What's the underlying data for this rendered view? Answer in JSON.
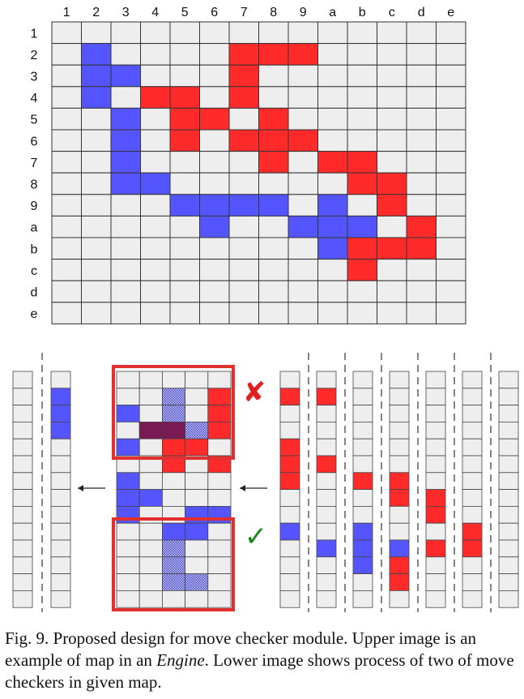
{
  "grid": {
    "col_labels": [
      "1",
      "2",
      "3",
      "4",
      "5",
      "6",
      "7",
      "8",
      "9",
      "a",
      "b",
      "c",
      "d",
      "e"
    ],
    "row_labels": [
      "1",
      "2",
      "3",
      "4",
      "5",
      "6",
      "7",
      "8",
      "9",
      "a",
      "b",
      "c",
      "d",
      "e"
    ],
    "blue_cells": [
      [
        2,
        2
      ],
      [
        2,
        3
      ],
      [
        3,
        3
      ],
      [
        2,
        4
      ],
      [
        3,
        5
      ],
      [
        3,
        6
      ],
      [
        3,
        7
      ],
      [
        3,
        8
      ],
      [
        4,
        8
      ],
      [
        5,
        9
      ],
      [
        6,
        9
      ],
      [
        7,
        9
      ],
      [
        8,
        9
      ],
      [
        10,
        9
      ],
      [
        6,
        10
      ],
      [
        9,
        10
      ],
      [
        10,
        10
      ],
      [
        11,
        10
      ],
      [
        10,
        11
      ]
    ],
    "red_cells": [
      [
        7,
        2
      ],
      [
        8,
        2
      ],
      [
        9,
        2
      ],
      [
        7,
        3
      ],
      [
        4,
        4
      ],
      [
        5,
        4
      ],
      [
        7,
        4
      ],
      [
        5,
        5
      ],
      [
        6,
        5
      ],
      [
        8,
        5
      ],
      [
        5,
        6
      ],
      [
        7,
        6
      ],
      [
        8,
        6
      ],
      [
        9,
        6
      ],
      [
        8,
        7
      ],
      [
        10,
        7
      ],
      [
        11,
        7
      ],
      [
        11,
        8
      ],
      [
        12,
        8
      ],
      [
        12,
        9
      ],
      [
        13,
        10
      ],
      [
        11,
        11
      ],
      [
        12,
        11
      ],
      [
        13,
        11
      ],
      [
        11,
        12
      ]
    ],
    "colors": {
      "empty": "#eeeeee",
      "border": "#333333",
      "blue": "#5555ff",
      "red": "#ff2b2b"
    }
  },
  "lower": {
    "reject_mark": "✘",
    "accept_mark": "✓",
    "colors": {
      "frame": "#e03030",
      "reject": "#e02020",
      "accept": "#1a8a1a",
      "purple": "#7a1a55",
      "hatch": "#5a5ad8"
    }
  },
  "caption": {
    "part1": "Fig. 9.  Proposed design for move checker module. Upper image is an example of map in an ",
    "engine": "Engine",
    "part2": ". Lower image shows process of two of move checkers in given map."
  }
}
